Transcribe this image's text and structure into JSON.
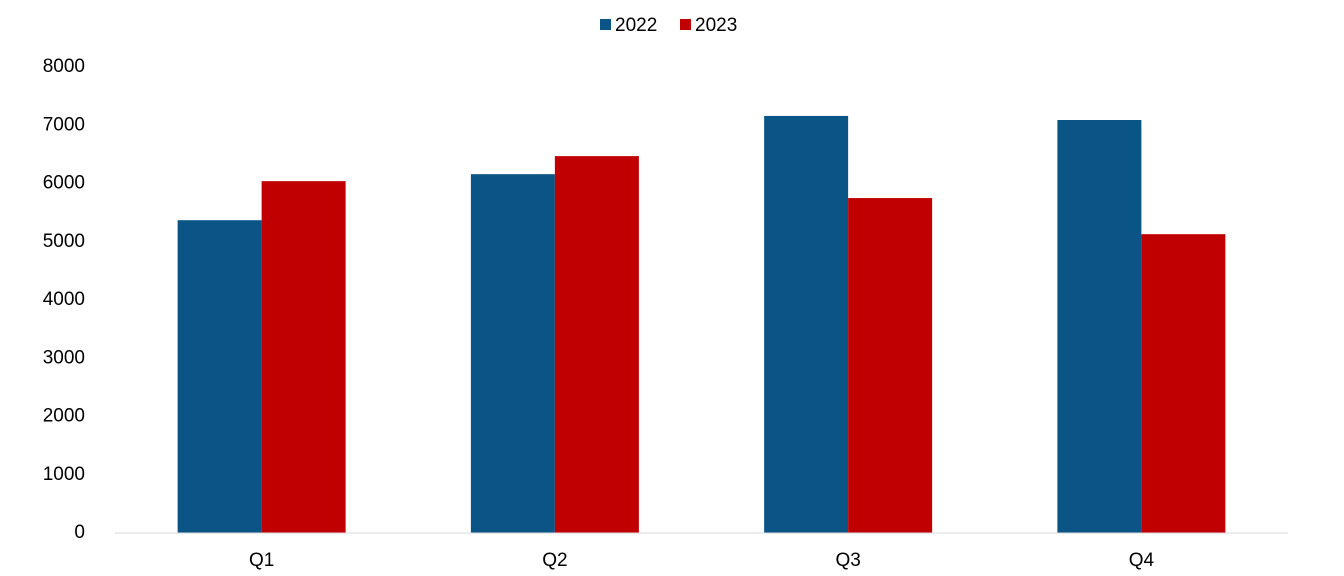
{
  "chart_data": {
    "type": "bar",
    "categories": [
      "Q1",
      "Q2",
      "Q3",
      "Q4"
    ],
    "series": [
      {
        "name": "2022",
        "color": "#0a5486",
        "values": [
          5370,
          6160,
          7160,
          7090
        ]
      },
      {
        "name": "2023",
        "color": "#c00000",
        "values": [
          6040,
          6470,
          5750,
          5130
        ]
      }
    ],
    "ylim": [
      0,
      8000
    ],
    "yticks": [
      0,
      1000,
      2000,
      3000,
      4000,
      5000,
      6000,
      7000,
      8000
    ],
    "grid": false,
    "legend": "top"
  }
}
